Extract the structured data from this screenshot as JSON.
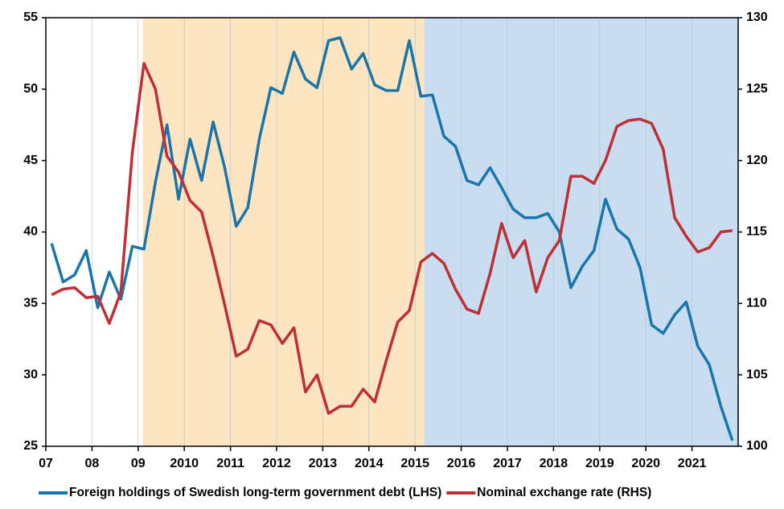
{
  "chart_data": {
    "type": "line",
    "x": [
      2007.125,
      2007.375,
      2007.625,
      2007.875,
      2008.125,
      2008.375,
      2008.625,
      2008.875,
      2009.125,
      2009.375,
      2009.625,
      2009.875,
      2010.125,
      2010.375,
      2010.625,
      2010.875,
      2011.125,
      2011.375,
      2011.625,
      2011.875,
      2012.125,
      2012.375,
      2012.625,
      2012.875,
      2013.125,
      2013.375,
      2013.625,
      2013.875,
      2014.125,
      2014.375,
      2014.625,
      2014.875,
      2015.125,
      2015.375,
      2015.625,
      2015.875,
      2016.125,
      2016.375,
      2016.625,
      2016.875,
      2017.125,
      2017.375,
      2017.625,
      2017.875,
      2018.125,
      2018.375,
      2018.625,
      2018.875,
      2019.125,
      2019.375,
      2019.625,
      2019.875,
      2020.125,
      2020.375,
      2020.625,
      2020.875,
      2021.125,
      2021.375,
      2021.625,
      2021.875
    ],
    "series": [
      {
        "name": "Foreign holdings of Swedish long-term government debt (LHS)",
        "color": "#1a76aa",
        "values": [
          39.2,
          36.5,
          37.0,
          38.7,
          34.7,
          37.2,
          35.3,
          39.0,
          38.8,
          43.5,
          47.5,
          42.3,
          46.5,
          43.6,
          47.7,
          44.5,
          40.4,
          41.7,
          46.5,
          50.1,
          49.7,
          52.6,
          50.7,
          50.1,
          53.4,
          53.6,
          51.4,
          52.5,
          50.3,
          49.9,
          49.9,
          53.4,
          49.5,
          49.6,
          46.7,
          46.0,
          43.6,
          43.3,
          44.5,
          43.1,
          41.6,
          41.0,
          41.0,
          41.3,
          40.0,
          36.1,
          37.6,
          38.7,
          42.3,
          40.2,
          39.5,
          37.5,
          33.5,
          32.9,
          34.2,
          35.1,
          32.0,
          30.7,
          27.8,
          25.4
        ]
      },
      {
        "name": "Nominal exchange rate (RHS)",
        "color": "#bf3036",
        "axis": "y2",
        "values": [
          110.6,
          111.0,
          111.1,
          110.4,
          110.5,
          108.6,
          110.8,
          120.6,
          126.8,
          125.0,
          120.3,
          119.2,
          117.2,
          116.4,
          113.3,
          109.9,
          106.3,
          106.8,
          108.8,
          108.5,
          107.2,
          108.3,
          103.8,
          105.0,
          102.3,
          102.8,
          102.8,
          104.0,
          103.1,
          106.0,
          108.7,
          109.5,
          112.9,
          113.5,
          112.8,
          111.0,
          109.6,
          109.3,
          112.1,
          115.6,
          113.2,
          114.4,
          110.8,
          113.2,
          114.4,
          118.9,
          118.9,
          118.4,
          120.0,
          122.4,
          122.8,
          122.9,
          122.6,
          120.8,
          116.0,
          114.7,
          113.6,
          113.9,
          115.0,
          115.1
        ]
      }
    ],
    "xlim": [
      2007,
      2022
    ],
    "xticks": [
      {
        "value": 2007,
        "label": "07"
      },
      {
        "value": 2008,
        "label": "08"
      },
      {
        "value": 2009,
        "label": "09"
      },
      2010,
      2011,
      2012,
      2013,
      2014,
      2015,
      2016,
      2017,
      2018,
      2019,
      2020,
      2021
    ],
    "ylim": [
      25,
      55
    ],
    "yticks": [
      25,
      30,
      35,
      40,
      45,
      50,
      55
    ],
    "y2lim": [
      100,
      130
    ],
    "y2ticks": [
      100,
      105,
      110,
      115,
      120,
      125,
      130
    ],
    "shaded_regions": [
      {
        "xlim": [
          2009.1,
          2015.2
        ],
        "color": "#fde5c2"
      },
      {
        "xlim": [
          2015.2,
          2022
        ],
        "color": "#c8ddef"
      }
    ],
    "grid": true,
    "legend": "bottom"
  }
}
